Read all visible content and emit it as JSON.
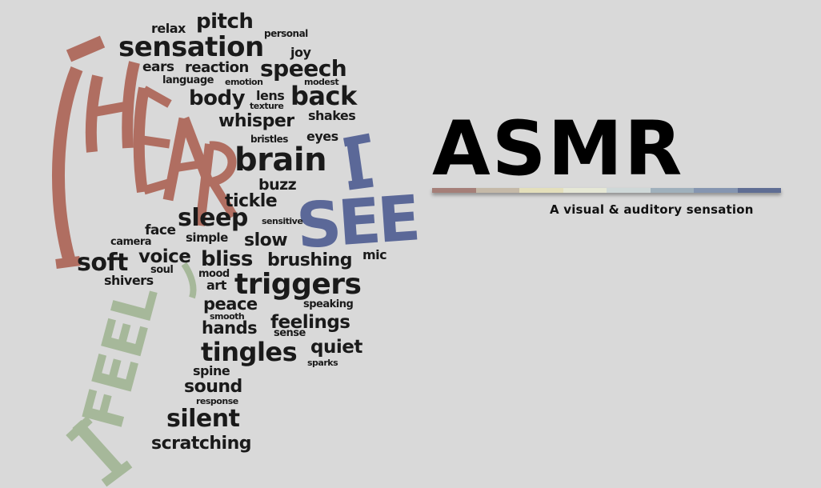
{
  "title": "ASMR",
  "subtitle": "A visual & auditory sensation",
  "colors": {
    "background": "#d9d9d9",
    "hear": "#b06e61",
    "see": "#5b6898",
    "feel": "#a6b89a",
    "rule": [
      "#a57f78",
      "#c5b9a8",
      "#e4dfba",
      "#e6e8d5",
      "#cfd8d8",
      "#9fb0bc",
      "#8595b0",
      "#5f6d93"
    ]
  },
  "phrases": {
    "hear": "I HEAR",
    "see_i": "I",
    "see_word": "SEE",
    "feel": "I FEEL"
  },
  "words": [
    {
      "text": "relax",
      "size": 16
    },
    {
      "text": "pitch",
      "size": 26
    },
    {
      "text": "personal",
      "size": 12
    },
    {
      "text": "sensation",
      "size": 34
    },
    {
      "text": "joy",
      "size": 16
    },
    {
      "text": "ears",
      "size": 17
    },
    {
      "text": "reaction",
      "size": 18
    },
    {
      "text": "speech",
      "size": 28
    },
    {
      "text": "language",
      "size": 13
    },
    {
      "text": "emotion",
      "size": 11
    },
    {
      "text": "modest",
      "size": 11
    },
    {
      "text": "body",
      "size": 26
    },
    {
      "text": "lens",
      "size": 16
    },
    {
      "text": "back",
      "size": 32
    },
    {
      "text": "texture",
      "size": 11
    },
    {
      "text": "whisper",
      "size": 22
    },
    {
      "text": "shakes",
      "size": 16
    },
    {
      "text": "bristles",
      "size": 12
    },
    {
      "text": "eyes",
      "size": 16
    },
    {
      "text": "brain",
      "size": 40
    },
    {
      "text": "buzz",
      "size": 19
    },
    {
      "text": "tickle",
      "size": 22
    },
    {
      "text": "sleep",
      "size": 30
    },
    {
      "text": "sensitive",
      "size": 11
    },
    {
      "text": "face",
      "size": 17
    },
    {
      "text": "camera",
      "size": 13
    },
    {
      "text": "simple",
      "size": 15
    },
    {
      "text": "slow",
      "size": 22
    },
    {
      "text": "soft",
      "size": 30
    },
    {
      "text": "voice",
      "size": 23
    },
    {
      "text": "bliss",
      "size": 26
    },
    {
      "text": "brushing",
      "size": 22
    },
    {
      "text": "mic",
      "size": 16
    },
    {
      "text": "soul",
      "size": 13
    },
    {
      "text": "mood",
      "size": 13
    },
    {
      "text": "triggers",
      "size": 36
    },
    {
      "text": "shivers",
      "size": 16
    },
    {
      "text": "art",
      "size": 16
    },
    {
      "text": "peace",
      "size": 21
    },
    {
      "text": "speaking",
      "size": 13
    },
    {
      "text": "smooth",
      "size": 11
    },
    {
      "text": "feelings",
      "size": 23
    },
    {
      "text": "hands",
      "size": 21
    },
    {
      "text": "sense",
      "size": 13
    },
    {
      "text": "tingles",
      "size": 32
    },
    {
      "text": "quiet",
      "size": 23
    },
    {
      "text": "sparks",
      "size": 11
    },
    {
      "text": "spine",
      "size": 16
    },
    {
      "text": "sound",
      "size": 22
    },
    {
      "text": "response",
      "size": 11
    },
    {
      "text": "silent",
      "size": 30
    },
    {
      "text": "scratching",
      "size": 22
    }
  ]
}
